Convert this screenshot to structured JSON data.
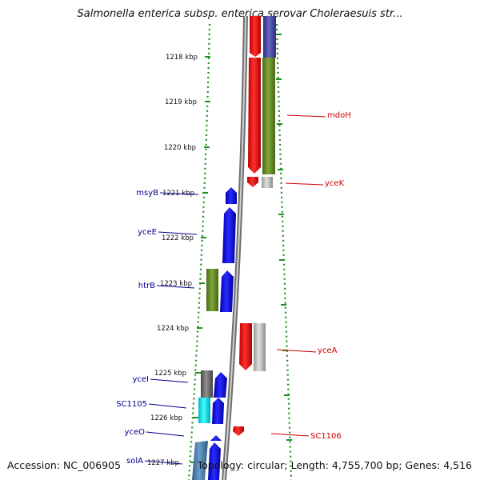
{
  "title": "Salmonella enterica subsp. enterica serovar Choleraesuis str...",
  "footer": {
    "accession": "Accession: NC_006905",
    "topology": "Topology: circular; Length: 4,755,700 bp; Genes: 4,516"
  },
  "ruler": {
    "unit": "kbp",
    "ticks": [
      "1218 kbp",
      "1219 kbp",
      "1220 kbp",
      "1221 kbp",
      "1222 kbp",
      "1223 kbp",
      "1224 kbp",
      "1225 kbp",
      "1226 kbp",
      "1227 kbp"
    ]
  },
  "genes": [
    {
      "name": "mdoH",
      "strand": "plus",
      "color": "#ff0000",
      "cog_color": "#6b8e23",
      "label_color": "#cc0000"
    },
    {
      "name": "yceK",
      "strand": "plus",
      "color": "#ff0000",
      "cog_color": "#c0c0c0",
      "label_color": "#cc0000"
    },
    {
      "name": "msyB",
      "strand": "minus",
      "color": "#0000ff",
      "label_color": "#00008b"
    },
    {
      "name": "yceE",
      "strand": "minus",
      "color": "#0000ff",
      "label_color": "#00008b"
    },
    {
      "name": "htrB",
      "strand": "minus",
      "color": "#0000ff",
      "cog_color": "#6b8e23",
      "label_color": "#00008b"
    },
    {
      "name": "yceA",
      "strand": "plus",
      "color": "#ff0000",
      "cog_color": "#c0c0c0",
      "label_color": "#cc0000"
    },
    {
      "name": "yceI",
      "strand": "minus",
      "color": "#0000ff",
      "cog_color": "#707070",
      "label_color": "#00008b"
    },
    {
      "name": "SC1105",
      "strand": "minus",
      "color": "#0000ff",
      "cog_color": "#00ffff",
      "label_color": "#00008b"
    },
    {
      "name": "SC1106",
      "strand": "plus",
      "color": "#ff0000",
      "label_color": "#cc0000"
    },
    {
      "name": "yceO",
      "strand": "minus",
      "color": "#0000ff",
      "label_color": "#00008b"
    },
    {
      "name": "solA",
      "strand": "minus",
      "color": "#0000ff",
      "cog_color": "#4682b4",
      "label_color": "#00008b"
    }
  ],
  "colors": {
    "backbone": "#8c8c8c",
    "ruler_dots": "#1f8f1f",
    "plus_strand": "#ff0000",
    "minus_strand": "#0000ff"
  }
}
